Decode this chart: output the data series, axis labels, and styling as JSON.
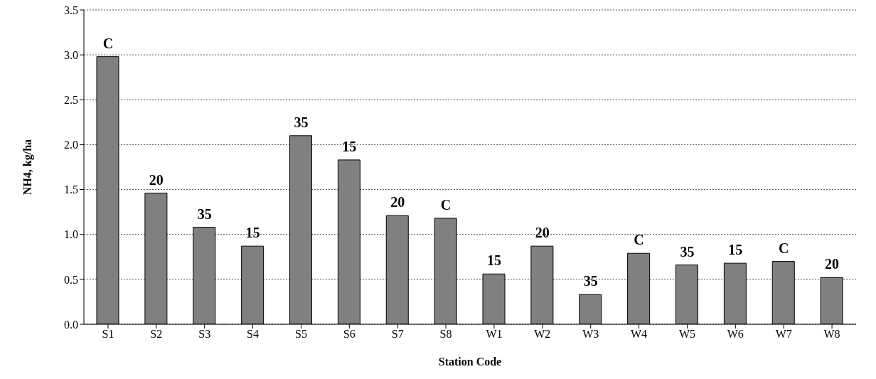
{
  "chart_data": {
    "type": "bar",
    "xlabel": "Station Code",
    "ylabel": "NH4, kg/ha",
    "categories": [
      "S1",
      "S2",
      "S3",
      "S4",
      "S5",
      "S6",
      "S7",
      "S8",
      "W1",
      "W2",
      "W3",
      "W4",
      "W5",
      "W6",
      "W7",
      "W8"
    ],
    "values": [
      2.98,
      1.46,
      1.08,
      0.87,
      2.1,
      1.83,
      1.21,
      1.18,
      0.56,
      0.87,
      0.33,
      0.79,
      0.66,
      0.68,
      0.7,
      0.52
    ],
    "annotations": [
      {
        "text": "C",
        "x": "S1",
        "y": 2.98
      },
      {
        "text": "20",
        "x": "S2",
        "y": 1.46
      },
      {
        "text": "35",
        "x": "S3",
        "y": 1.08
      },
      {
        "text": "15",
        "x": "S4",
        "y": 0.87
      },
      {
        "text": "35",
        "x": "S5",
        "y": 2.1
      },
      {
        "text": "15",
        "x": "S6",
        "y": 1.83
      },
      {
        "text": "20",
        "x": "S7",
        "y": 1.21
      },
      {
        "text": "C",
        "x": "S8",
        "y": 1.18
      },
      {
        "text": "15",
        "x": "W1",
        "y": 0.56
      },
      {
        "text": "20",
        "x": "W2",
        "y": 0.87
      },
      {
        "text": "35",
        "x": "W3",
        "y": 0.33
      },
      {
        "text": "C",
        "x": "W4",
        "y": 0.79
      },
      {
        "text": "35",
        "x": "W5",
        "y": 0.66
      },
      {
        "text": "15",
        "x": "W6",
        "y": 0.68
      },
      {
        "text": "C",
        "x": "W7",
        "y": 0.7
      },
      {
        "text": "20",
        "x": "W8",
        "y": 0.52
      }
    ],
    "color": "#808080",
    "ylim": [
      0,
      3.5
    ],
    "yticks": [
      {
        "value": 0,
        "label": "0.0"
      },
      {
        "value": 0.5,
        "label": "0.5"
      },
      {
        "value": 1,
        "label": "1.0"
      },
      {
        "value": 1.5,
        "label": "1.5"
      },
      {
        "value": 2,
        "label": "2.0"
      },
      {
        "value": 2.5,
        "label": "2.5"
      },
      {
        "value": 3,
        "label": "3.0"
      },
      {
        "value": 3.5,
        "label": "3.5"
      }
    ],
    "grid": "y"
  }
}
